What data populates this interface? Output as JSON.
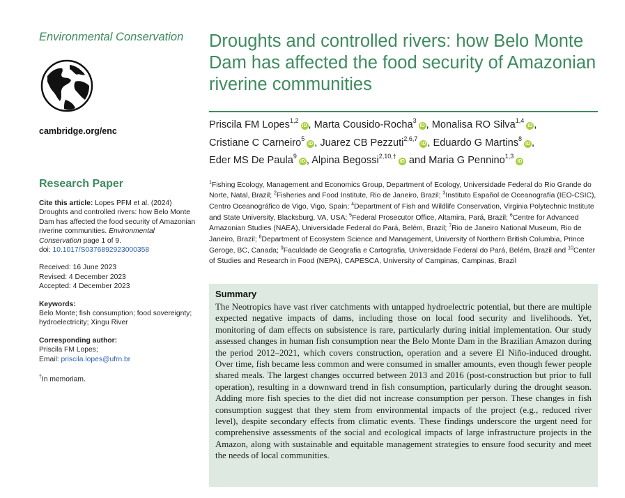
{
  "journal": "Environmental Conservation",
  "website": "cambridge.org/enc",
  "article_type": "Research Paper",
  "cite": {
    "label": "Cite this article:",
    "authors": "Lopes PFM et al. (2024)",
    "title_text": "Droughts and controlled rivers: how Belo Monte Dam has affected the food security of Amazonian riverine communities.",
    "journal_name": "Environmental Conservation",
    "pages": "page 1 of 9.",
    "doi_label": "doi:",
    "doi": "10.1017/S0376892923000358"
  },
  "dates": {
    "received": "Received: 16 June 2023",
    "revised": "Revised: 4 December 2023",
    "accepted": "Accepted: 4 December 2023"
  },
  "keywords": {
    "label": "Keywords:",
    "text": "Belo Monte; fish consumption; food sovereignty; hydroelectricity; Xingu River"
  },
  "corresponding": {
    "label": "Corresponding author:",
    "name": "Priscila FM Lopes;",
    "email_label": "Email:",
    "email": "priscila.lopes@ufrn.br"
  },
  "memoriam": "In memoriam.",
  "memoriam_mark": "†",
  "title": "Droughts and controlled rivers: how Belo Monte Dam has affected the food security of Amazonian riverine communities",
  "orcid_label": "iD",
  "authors": [
    {
      "name": "Priscila FM Lopes",
      "sup": "1,2",
      "sep": ", "
    },
    {
      "name": "Marta Cousido-Rocha",
      "sup": "3",
      "sep": ", "
    },
    {
      "name": "Monalisa RO Silva",
      "sup": "1,4",
      "sep": ","
    },
    {
      "name": "Cristiane C Carneiro",
      "sup": "5",
      "sep": ", "
    },
    {
      "name": "Juarez CB Pezzuti",
      "sup": "2,6,7",
      "sep": ", "
    },
    {
      "name": "Eduardo G Martins",
      "sup": "8",
      "sep": ","
    },
    {
      "name": "Eder MS De Paula",
      "sup": "9",
      "sep": ", "
    },
    {
      "name": "Alpina Begossi",
      "sup": "2,10,†",
      "sep": " and "
    },
    {
      "name": "Maria G Pennino",
      "sup": "1,3",
      "sep": ""
    }
  ],
  "affiliations": [
    {
      "n": "1",
      "text": "Fishing Ecology, Management and Economics Group, Department of Ecology, Universidade Federal do Rio Grande do Norte, Natal, Brazil; "
    },
    {
      "n": "2",
      "text": "Fisheries and Food Institute, Rio de Janeiro, Brazil; "
    },
    {
      "n": "3",
      "text": "Instituto Español de Oceanografía (IEO-CSIC), Centro Oceanográfico de Vigo, Vigo, Spain; "
    },
    {
      "n": "4",
      "text": "Department of Fish and Wildlife Conservation, Virginia Polytechnic Institute and State University, Blacksburg, VA, USA; "
    },
    {
      "n": "5",
      "text": "Federal Prosecutor Office, Altamira, Pará, Brazil; "
    },
    {
      "n": "6",
      "text": "Centre for Advanced Amazonian Studies (NAEA), Universidade Federal do Pará, Belém, Brazil; "
    },
    {
      "n": "7",
      "text": "Rio de Janeiro National Museum, Rio de Janeiro, Brazil; "
    },
    {
      "n": "8",
      "text": "Department of Ecosystem Science and Management, University of Northern British Columbia, Prince Geroge, BC, Canada; "
    },
    {
      "n": "9",
      "text": "Faculdade de Geografia e Cartografia, Universidade Federal do Pará, Belém, Brazil and "
    },
    {
      "n": "10",
      "text": "Center of Studies and Research in Food (NEPA), CAPESCA, University of Campinas, Campinas, Brazil"
    }
  ],
  "summary": {
    "heading": "Summary",
    "text": "The Neotropics have vast river catchments with untapped hydroelectric potential, but there are multiple expected negative impacts of dams, including those on local food security and livelihoods. Yet, monitoring of dam effects on subsistence is rare, particularly during initial implementation. Our study assessed changes in human fish consumption near the Belo Monte Dam in the Brazilian Amazon during the period 2012–2021, which covers construction, operation and a severe El Niño-induced drought. Over time, fish became less common and were consumed in smaller amounts, even though fewer people shared meals. The largest changes occurred between 2013 and 2016 (post-construction but prior to full operation), resulting in a downward trend in fish consumption, particularly during the drought season. Adding more fish species to the diet did not increase consumption per person. These changes in fish consumption suggest that they stem from environmental impacts of the project (e.g., reduced river level), despite secondary effects from climatic events. These findings underscore the urgent need for comprehensive assessments of the social and ecological impacts of large infrastructure projects in the Amazon, along with sustainable and equitable management strategies to ensure food security and meet the needs of local communities."
  },
  "colors": {
    "accent": "#3e8a5e",
    "summary_bg": "#dde9e1",
    "orcid": "#a6ce39",
    "link": "#2a5fa8"
  }
}
